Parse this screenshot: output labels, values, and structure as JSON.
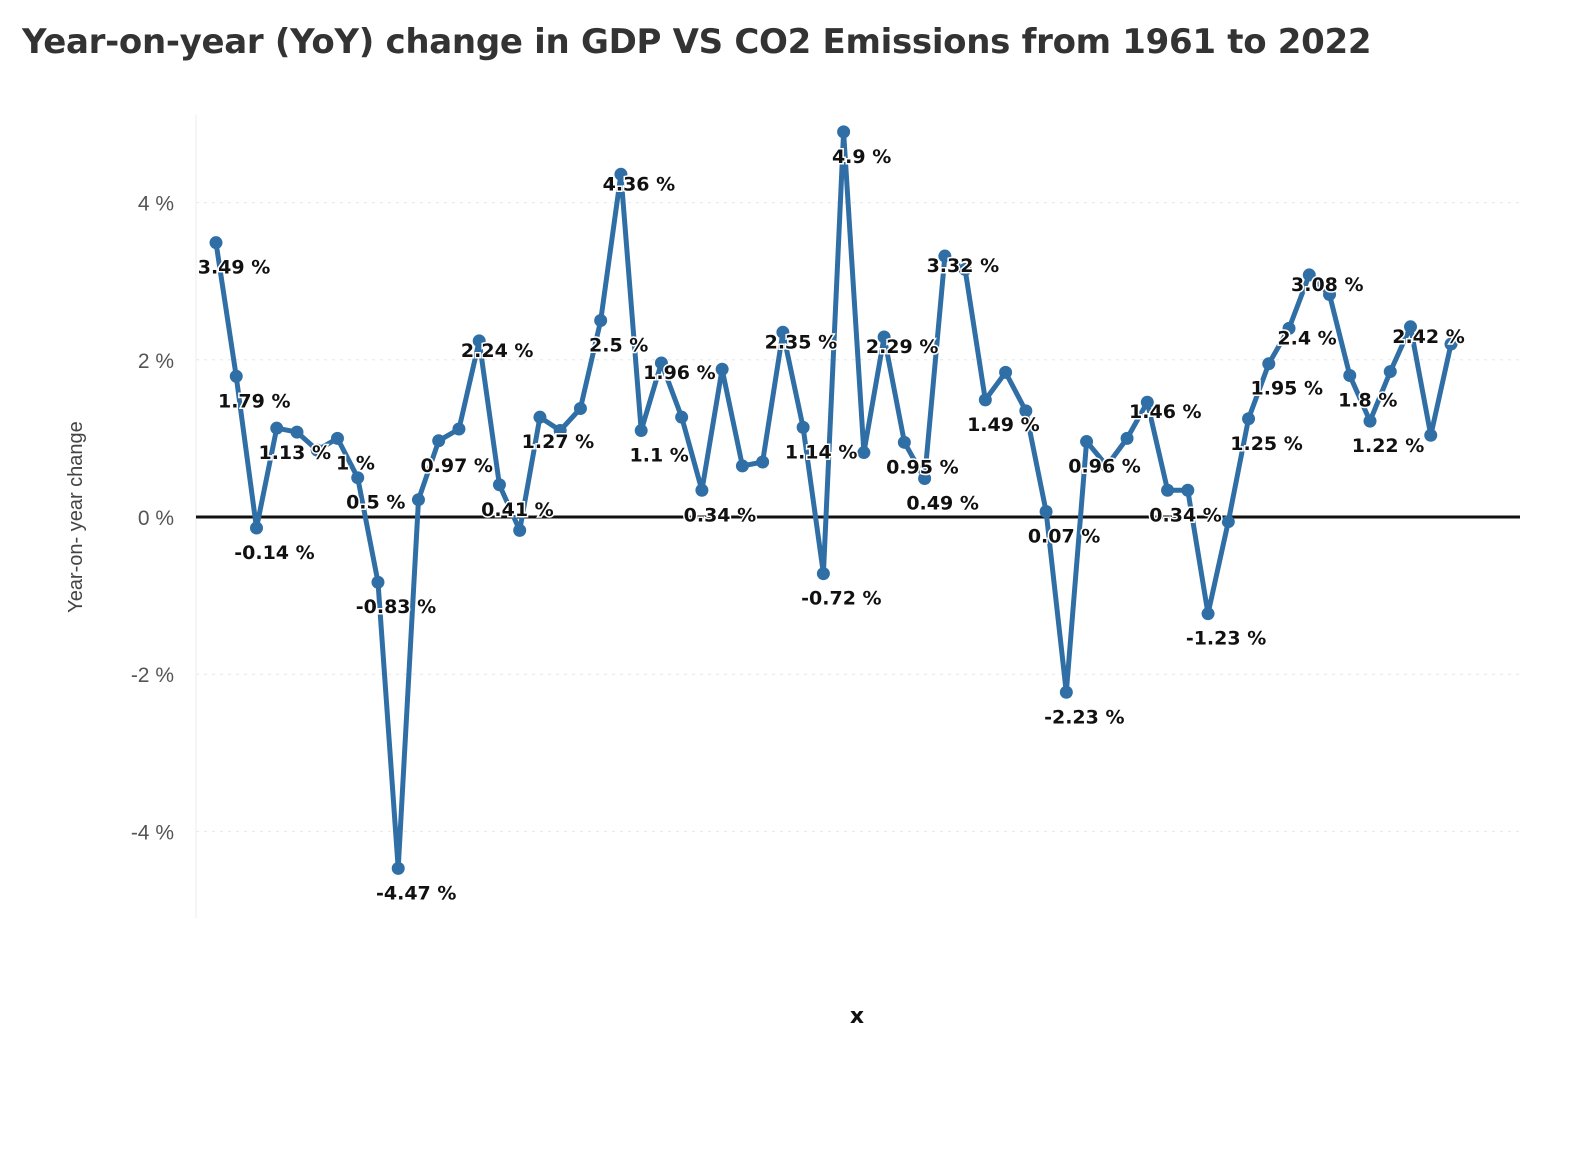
{
  "chart_data": {
    "type": "line",
    "title": "Year-on-year (YoY) change in GDP VS CO2 Emissions from 1961 to 2022",
    "xlabel": "x",
    "ylabel": "Year-on- year change",
    "y_ticks": [
      "4 %",
      "2 %",
      "0 %",
      "-2 %",
      "-4 %"
    ],
    "ylim": [
      -5.1,
      5.1
    ],
    "grid": true,
    "legend": "none",
    "colors": {
      "line": "#2f6fa6",
      "zero_line": "#111111",
      "grid": "#e6e6e6"
    },
    "series": [
      {
        "values": [
          3.49,
          1.79,
          -0.14,
          1.13,
          1.08,
          0.85,
          1.0,
          0.5,
          -0.83,
          -4.47,
          0.22,
          0.97,
          1.12,
          2.24,
          0.41,
          -0.17,
          1.27,
          1.1,
          1.38,
          2.5,
          4.36,
          1.1,
          1.96,
          1.27,
          0.34,
          1.88,
          0.65,
          0.7,
          2.35,
          1.14,
          -0.72,
          4.9,
          0.82,
          2.29,
          0.95,
          0.49,
          3.32,
          3.15,
          1.49,
          1.84,
          1.35,
          0.07,
          -2.23,
          0.96,
          0.65,
          1.0,
          1.46,
          0.34,
          0.34,
          -1.23,
          -0.06,
          1.25,
          1.95,
          2.4,
          3.08,
          2.83,
          1.8,
          1.22,
          1.85,
          2.42,
          1.04,
          2.2
        ],
        "labels": [
          "3.49 %",
          "1.79 %",
          "-0.14 %",
          "1.13 %",
          "",
          "",
          "1 %",
          "0.5 %",
          "-0.83 %",
          "-4.47 %",
          "",
          "0.97 %",
          "",
          "2.24 %",
          "0.41 %",
          "",
          "1.27 %",
          "",
          "",
          "2.5 %",
          "4.36 %",
          "1.1 %",
          "1.96 %",
          "",
          "0.34 %",
          "",
          "",
          "",
          "2.35 %",
          "1.14 %",
          "-0.72 %",
          "4.9 %",
          "",
          "2.29 %",
          "0.95 %",
          "0.49 %",
          "3.32 %",
          "",
          "1.49 %",
          "",
          "",
          "0.07 %",
          "-2.23 %",
          "0.96 %",
          "",
          "",
          "1.46 %",
          "0.34 %",
          "",
          "-1.23 %",
          "",
          "1.25 %",
          "1.95 %",
          "2.4 %",
          "3.08 %",
          "",
          "1.8 %",
          "1.22 %",
          "",
          "2.42 %",
          "",
          ""
        ]
      }
    ]
  }
}
